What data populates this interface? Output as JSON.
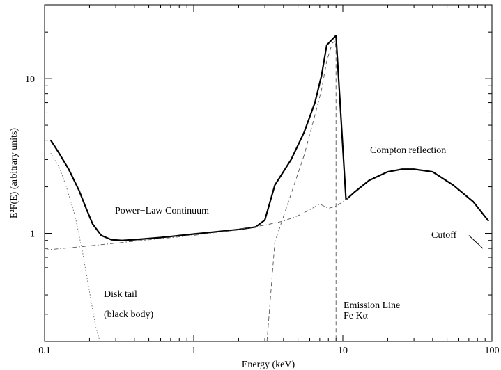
{
  "chart_data": {
    "type": "line",
    "xlabel": "Energy (keV)",
    "ylabel": "E²F(E) (arbitrary units)",
    "xscale": "log",
    "yscale": "log",
    "xlim": [
      0.1,
      100
    ],
    "ylim": [
      0.2,
      30
    ],
    "grid": false,
    "x_ticks": [
      {
        "value": 0.1,
        "label": "0.1"
      },
      {
        "value": 1,
        "label": "1"
      },
      {
        "value": 10,
        "label": "10"
      },
      {
        "value": 100,
        "label": "100"
      }
    ],
    "y_ticks": [
      {
        "value": 1,
        "label": "1"
      },
      {
        "value": 10,
        "label": "10"
      }
    ],
    "annotations": {
      "compton": "Compton reflection",
      "powerlaw": "Power−Law Continuum",
      "cutoff": "Cutoff",
      "disk1": "Disk tail",
      "disk2": "(black body)",
      "emission1": "Emission Line",
      "emission2": "Fe Kα"
    },
    "series": [
      {
        "style": "solid",
        "color": "#000000",
        "x": [
          0.11,
          0.125,
          0.145,
          0.17,
          0.19,
          0.21,
          0.24,
          0.28,
          0.33,
          0.4,
          0.6,
          1.0,
          1.5,
          2.0,
          2.6,
          3.0,
          3.5,
          4.5,
          5.5,
          6.5,
          7.2,
          7.8,
          9.0,
          10.5,
          12,
          15,
          20,
          25,
          30,
          40,
          55,
          75,
          95
        ],
        "y": [
          4.0,
          3.3,
          2.6,
          1.9,
          1.45,
          1.15,
          0.97,
          0.91,
          0.9,
          0.91,
          0.94,
          0.99,
          1.03,
          1.06,
          1.1,
          1.22,
          2.05,
          3.0,
          4.5,
          7.0,
          10.5,
          16.5,
          19,
          1.65,
          1.85,
          2.2,
          2.5,
          2.6,
          2.6,
          2.5,
          2.05,
          1.6,
          1.2
        ]
      },
      {
        "style": "dashdot",
        "color": "#555555",
        "x": [
          0.1,
          0.2,
          0.4,
          1,
          2,
          3,
          4,
          5,
          6,
          7,
          8,
          9,
          10,
          11
        ],
        "y": [
          0.78,
          0.83,
          0.89,
          0.97,
          1.06,
          1.13,
          1.2,
          1.3,
          1.42,
          1.55,
          1.45,
          1.5,
          1.6,
          1.7
        ]
      },
      {
        "style": "dashed",
        "color": "#555555",
        "x": [
          3.1,
          3.5,
          4.5,
          5.5,
          6.5,
          7.2,
          7.8,
          8.5,
          8.9,
          9.0,
          9.0
        ],
        "y": [
          0.2,
          0.88,
          1.8,
          3.2,
          5.8,
          8.5,
          13,
          17,
          17.5,
          15,
          0.2
        ]
      },
      {
        "style": "dotted",
        "color": "#666666",
        "x": [
          0.11,
          0.125,
          0.14,
          0.16,
          0.18,
          0.2,
          0.22,
          0.235
        ],
        "y": [
          3.3,
          2.7,
          2.0,
          1.3,
          0.75,
          0.42,
          0.25,
          0.2
        ]
      },
      {
        "style": "solid",
        "color": "#000000",
        "x": [
          70,
          87
        ],
        "y": [
          0.97,
          0.8
        ]
      }
    ]
  }
}
